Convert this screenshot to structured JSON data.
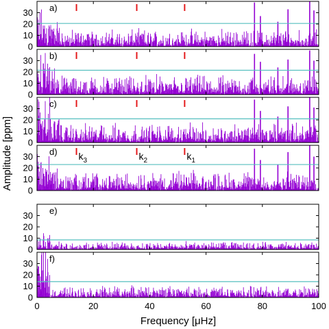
{
  "chart_data": {
    "type": "line",
    "xlabel": "Frequency [μHz]",
    "ylabel": "Amplitude [ppm]",
    "xlim": [
      0,
      100
    ],
    "x_ticks": [
      0,
      20,
      40,
      60,
      80,
      100
    ],
    "ylim": [
      0,
      40
    ],
    "y_ticks": [
      0,
      10,
      20,
      30
    ],
    "grid": false,
    "colors": {
      "spectrum": "#9400d3",
      "threshold": "#55bfbf",
      "marker": "#e41a1c",
      "frame": "#000000"
    },
    "markers": [
      {
        "label": "k",
        "sub": "3",
        "x": 14.0
      },
      {
        "label": "k",
        "sub": "2",
        "x": 35.4
      },
      {
        "label": "k",
        "sub": "1",
        "x": 52.4
      }
    ],
    "panels": [
      {
        "label": "a)",
        "threshold": 20.5,
        "noise": 9,
        "peaks": [
          [
            77.2,
            39
          ],
          [
            79.3,
            27
          ],
          [
            85.5,
            22
          ],
          [
            89.1,
            33
          ],
          [
            96.8,
            40
          ],
          [
            98.3,
            32
          ]
        ],
        "markers": true,
        "marker_labels": false
      },
      {
        "label": "b)",
        "threshold": 21.5,
        "noise": 10,
        "peaks": [
          [
            77.2,
            36
          ],
          [
            79.3,
            29
          ],
          [
            85.5,
            24
          ],
          [
            89.1,
            31
          ],
          [
            96.8,
            39
          ],
          [
            98.3,
            30
          ]
        ],
        "markers": true,
        "marker_labels": false
      },
      {
        "label": "c)",
        "threshold": 21.0,
        "noise": 10,
        "peaks": [
          [
            77.2,
            38
          ],
          [
            79.3,
            28
          ],
          [
            85.5,
            23
          ],
          [
            89.1,
            32
          ],
          [
            96.8,
            40
          ],
          [
            98.3,
            31
          ]
        ],
        "markers": true,
        "marker_labels": false
      },
      {
        "label": "d)",
        "threshold": 23.0,
        "noise": 10,
        "peaks": [
          [
            77.2,
            37
          ],
          [
            79.3,
            27
          ],
          [
            85.5,
            23
          ],
          [
            89.1,
            34
          ],
          [
            96.8,
            40
          ],
          [
            98.3,
            30
          ]
        ],
        "markers": true,
        "marker_labels": true
      },
      {
        "label": "e)",
        "threshold": 8.5,
        "noise": 4,
        "peaks": [],
        "markers": false,
        "marker_labels": false
      },
      {
        "label": "f)",
        "threshold": 14.0,
        "noise": 6,
        "peaks": [],
        "markers": false,
        "marker_labels": false,
        "low_bump": 31
      }
    ]
  }
}
